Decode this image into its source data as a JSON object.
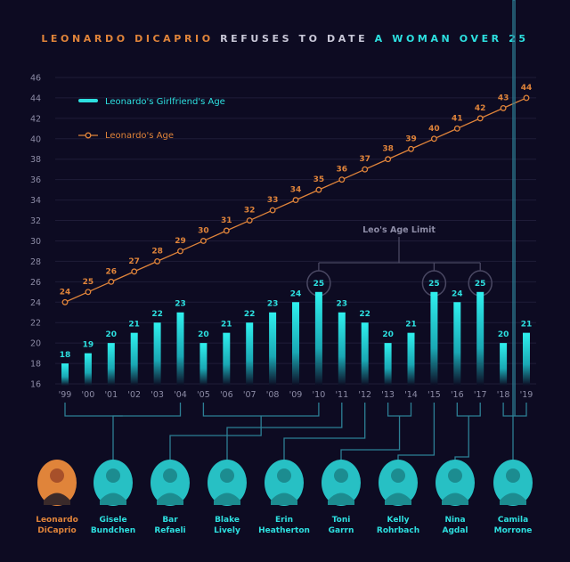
{
  "title": {
    "part1": "LEONARDO DICAPRIO",
    "part2": " REFUSES TO DATE ",
    "part3": "A WOMAN OVER 25"
  },
  "colors": {
    "background": "#0d0b22",
    "orange": "#e0843a",
    "cyan": "#2de0e0",
    "grid": "#221f3c",
    "connector": "#2d7f95"
  },
  "chart_data": {
    "type": "bar+line",
    "categories": [
      "'99",
      "'00",
      "'01",
      "'02",
      "'03",
      "'04",
      "'05",
      "'06",
      "'07",
      "'08",
      "'09",
      "'10",
      "'11",
      "'12",
      "'13",
      "'14",
      "'15",
      "'16",
      "'17",
      "'18",
      "'19"
    ],
    "series": [
      {
        "name": "Leonardo's Girlfriend's Age",
        "type": "bar",
        "values": [
          18,
          19,
          20,
          21,
          22,
          23,
          20,
          21,
          22,
          23,
          24,
          25,
          23,
          22,
          20,
          21,
          25,
          24,
          25,
          20,
          21
        ]
      },
      {
        "name": "Leonardo's Age",
        "type": "line",
        "values": [
          24,
          25,
          26,
          27,
          28,
          29,
          30,
          31,
          32,
          33,
          34,
          35,
          36,
          37,
          38,
          39,
          40,
          41,
          42,
          43,
          44
        ]
      }
    ],
    "yticks": [
      16,
      18,
      20,
      22,
      24,
      26,
      28,
      30,
      32,
      34,
      36,
      38,
      40,
      42,
      44,
      46
    ],
    "ylim": [
      16,
      46
    ],
    "grid": true,
    "legend": "top-left",
    "annotation": "Leo's Age Limit",
    "highlighted_categories": [
      "'10",
      "'15",
      "'17"
    ]
  },
  "people": [
    {
      "first": "Leonardo",
      "last": "DiCaprio",
      "color": "#e0843a",
      "years": []
    },
    {
      "first": "Gisele",
      "last": "Bundchen",
      "color": "#2de0e0",
      "years": [
        "'99",
        "'04"
      ]
    },
    {
      "first": "Bar",
      "last": "Refaeli",
      "color": "#2de0e0",
      "years": [
        "'05",
        "'10"
      ]
    },
    {
      "first": "Blake",
      "last": "Lively",
      "color": "#2de0e0",
      "years": [
        "'11"
      ]
    },
    {
      "first": "Erin",
      "last": "Heatherton",
      "color": "#2de0e0",
      "years": [
        "'12"
      ]
    },
    {
      "first": "Toni",
      "last": "Garrn",
      "color": "#2de0e0",
      "years": [
        "'13",
        "'14"
      ]
    },
    {
      "first": "Kelly",
      "last": "Rohrbach",
      "color": "#2de0e0",
      "years": [
        "'15"
      ]
    },
    {
      "first": "Nina",
      "last": "Agdal",
      "color": "#2de0e0",
      "years": [
        "'16",
        "'17"
      ]
    },
    {
      "first": "Camila",
      "last": "Morrone",
      "color": "#2de0e0",
      "years": [
        "'18",
        "'19"
      ]
    }
  ]
}
